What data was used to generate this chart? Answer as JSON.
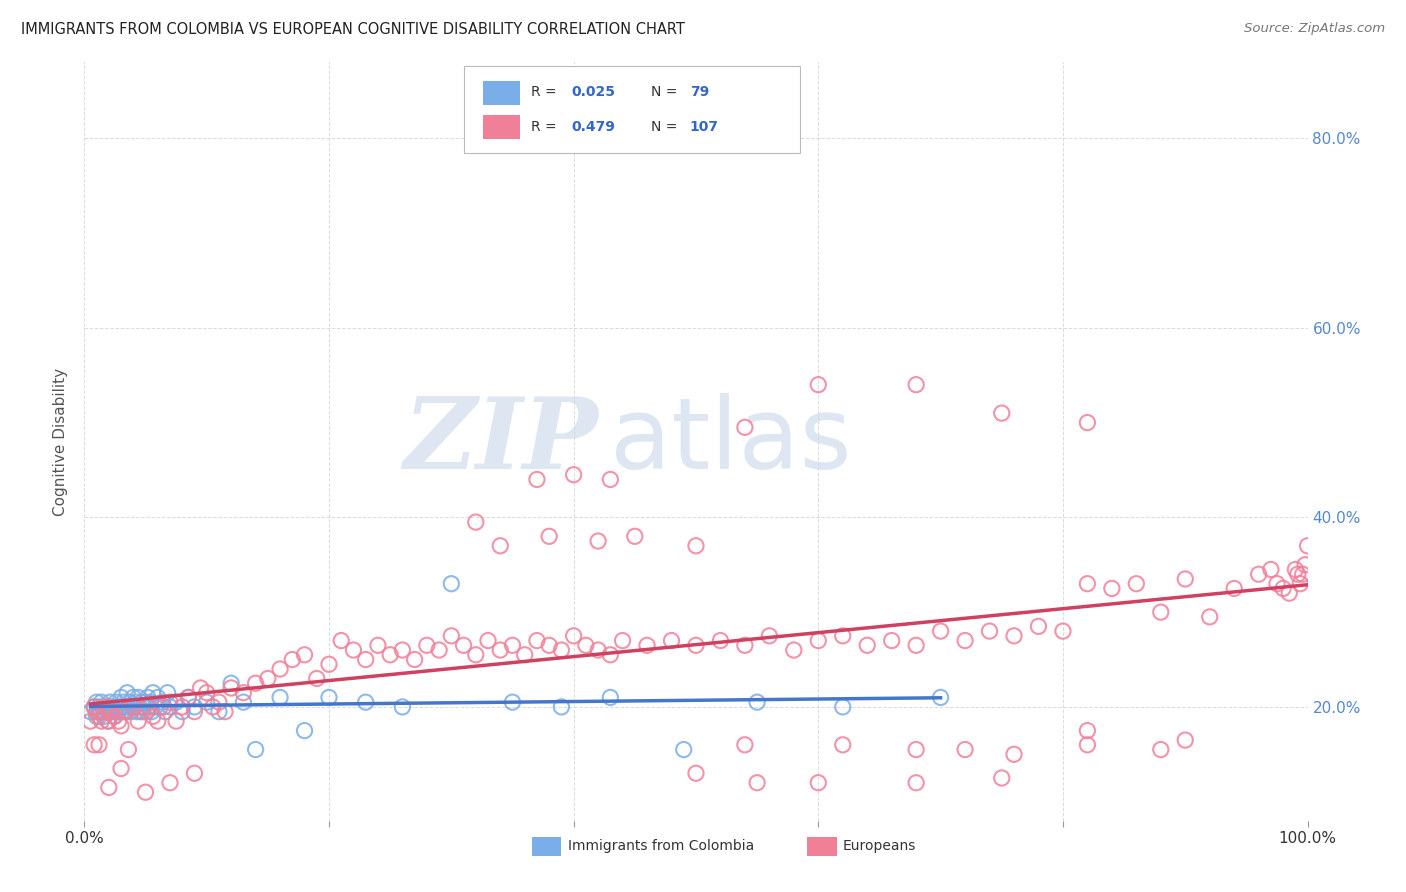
{
  "title": "IMMIGRANTS FROM COLOMBIA VS EUROPEAN COGNITIVE DISABILITY CORRELATION CHART",
  "source": "Source: ZipAtlas.com",
  "ylabel": "Cognitive Disability",
  "xlim": [
    0.0,
    1.0
  ],
  "ylim": [
    0.08,
    0.88
  ],
  "colombia_R": 0.025,
  "colombia_N": 79,
  "european_R": 0.479,
  "european_N": 107,
  "colombia_color": "#7aaee8",
  "european_color": "#f08098",
  "colombia_line_color": "#4477cc",
  "european_line_color": "#d04060",
  "legend_color": "#3366cc",
  "watermark_color": "#c8d8e8",
  "background_color": "#ffffff",
  "grid_color": "#cccccc",
  "ytick_color": "#5588cc",
  "colombia_x": [
    0.005,
    0.008,
    0.01,
    0.01,
    0.011,
    0.012,
    0.013,
    0.014,
    0.015,
    0.016,
    0.017,
    0.018,
    0.019,
    0.02,
    0.02,
    0.021,
    0.022,
    0.023,
    0.024,
    0.025,
    0.026,
    0.027,
    0.028,
    0.03,
    0.03,
    0.031,
    0.032,
    0.033,
    0.034,
    0.035,
    0.036,
    0.037,
    0.038,
    0.039,
    0.04,
    0.041,
    0.042,
    0.043,
    0.044,
    0.045,
    0.046,
    0.047,
    0.048,
    0.05,
    0.051,
    0.052,
    0.053,
    0.054,
    0.055,
    0.056,
    0.058,
    0.06,
    0.062,
    0.064,
    0.066,
    0.068,
    0.07,
    0.075,
    0.08,
    0.085,
    0.09,
    0.1,
    0.11,
    0.12,
    0.13,
    0.14,
    0.16,
    0.18,
    0.2,
    0.23,
    0.26,
    0.3,
    0.35,
    0.39,
    0.43,
    0.49,
    0.55,
    0.62,
    0.7
  ],
  "colombia_y": [
    0.195,
    0.2,
    0.205,
    0.19,
    0.195,
    0.2,
    0.195,
    0.205,
    0.2,
    0.19,
    0.195,
    0.2,
    0.185,
    0.195,
    0.2,
    0.205,
    0.195,
    0.2,
    0.19,
    0.195,
    0.205,
    0.2,
    0.195,
    0.2,
    0.21,
    0.195,
    0.205,
    0.2,
    0.195,
    0.215,
    0.2,
    0.205,
    0.195,
    0.2,
    0.21,
    0.2,
    0.205,
    0.195,
    0.21,
    0.2,
    0.195,
    0.205,
    0.2,
    0.205,
    0.195,
    0.21,
    0.2,
    0.205,
    0.195,
    0.215,
    0.2,
    0.21,
    0.2,
    0.205,
    0.195,
    0.215,
    0.2,
    0.205,
    0.195,
    0.21,
    0.2,
    0.205,
    0.195,
    0.225,
    0.205,
    0.155,
    0.21,
    0.175,
    0.21,
    0.205,
    0.2,
    0.33,
    0.205,
    0.2,
    0.21,
    0.155,
    0.205,
    0.2,
    0.21
  ],
  "european_x": [
    0.005,
    0.008,
    0.01,
    0.012,
    0.014,
    0.016,
    0.018,
    0.02,
    0.022,
    0.025,
    0.028,
    0.03,
    0.033,
    0.036,
    0.04,
    0.044,
    0.048,
    0.052,
    0.056,
    0.06,
    0.065,
    0.07,
    0.075,
    0.08,
    0.085,
    0.09,
    0.095,
    0.1,
    0.105,
    0.11,
    0.115,
    0.12,
    0.13,
    0.14,
    0.15,
    0.16,
    0.17,
    0.18,
    0.19,
    0.2,
    0.21,
    0.22,
    0.23,
    0.24,
    0.25,
    0.26,
    0.27,
    0.28,
    0.29,
    0.3,
    0.31,
    0.32,
    0.33,
    0.34,
    0.35,
    0.36,
    0.37,
    0.38,
    0.39,
    0.4,
    0.41,
    0.42,
    0.43,
    0.44,
    0.46,
    0.48,
    0.5,
    0.52,
    0.54,
    0.56,
    0.58,
    0.6,
    0.62,
    0.64,
    0.66,
    0.68,
    0.7,
    0.72,
    0.74,
    0.76,
    0.78,
    0.8,
    0.82,
    0.84,
    0.86,
    0.88,
    0.9,
    0.92,
    0.94,
    0.96,
    0.97,
    0.975,
    0.98,
    0.985,
    0.99,
    0.992,
    0.994,
    0.996,
    0.998,
    1.0,
    0.008,
    0.012,
    0.02,
    0.03,
    0.05,
    0.07,
    0.09
  ],
  "european_y": [
    0.185,
    0.2,
    0.195,
    0.19,
    0.185,
    0.195,
    0.2,
    0.185,
    0.195,
    0.19,
    0.185,
    0.18,
    0.195,
    0.155,
    0.2,
    0.185,
    0.195,
    0.2,
    0.19,
    0.185,
    0.2,
    0.205,
    0.185,
    0.2,
    0.21,
    0.195,
    0.22,
    0.215,
    0.2,
    0.205,
    0.195,
    0.22,
    0.215,
    0.225,
    0.23,
    0.24,
    0.25,
    0.255,
    0.23,
    0.245,
    0.27,
    0.26,
    0.25,
    0.265,
    0.255,
    0.26,
    0.25,
    0.265,
    0.26,
    0.275,
    0.265,
    0.255,
    0.27,
    0.26,
    0.265,
    0.255,
    0.27,
    0.265,
    0.26,
    0.275,
    0.265,
    0.26,
    0.255,
    0.27,
    0.265,
    0.27,
    0.265,
    0.27,
    0.265,
    0.275,
    0.26,
    0.27,
    0.275,
    0.265,
    0.27,
    0.265,
    0.28,
    0.27,
    0.28,
    0.275,
    0.285,
    0.28,
    0.33,
    0.325,
    0.33,
    0.3,
    0.335,
    0.295,
    0.325,
    0.34,
    0.345,
    0.33,
    0.325,
    0.32,
    0.345,
    0.34,
    0.33,
    0.34,
    0.35,
    0.37,
    0.16,
    0.16,
    0.115,
    0.135,
    0.11,
    0.12,
    0.13
  ],
  "extra_european_x": [
    0.32,
    0.34,
    0.38,
    0.42,
    0.45,
    0.5,
    0.54,
    0.62,
    0.68,
    0.72,
    0.76,
    0.82,
    0.88,
    0.5,
    0.55,
    0.6,
    0.68,
    0.75,
    0.82,
    0.9,
    0.54,
    0.6,
    0.68,
    0.75,
    0.82,
    0.37,
    0.4,
    0.43
  ],
  "extra_european_y": [
    0.395,
    0.37,
    0.38,
    0.375,
    0.38,
    0.37,
    0.16,
    0.16,
    0.155,
    0.155,
    0.15,
    0.16,
    0.155,
    0.13,
    0.12,
    0.12,
    0.12,
    0.125,
    0.175,
    0.165,
    0.495,
    0.54,
    0.54,
    0.51,
    0.5,
    0.44,
    0.445,
    0.44
  ]
}
